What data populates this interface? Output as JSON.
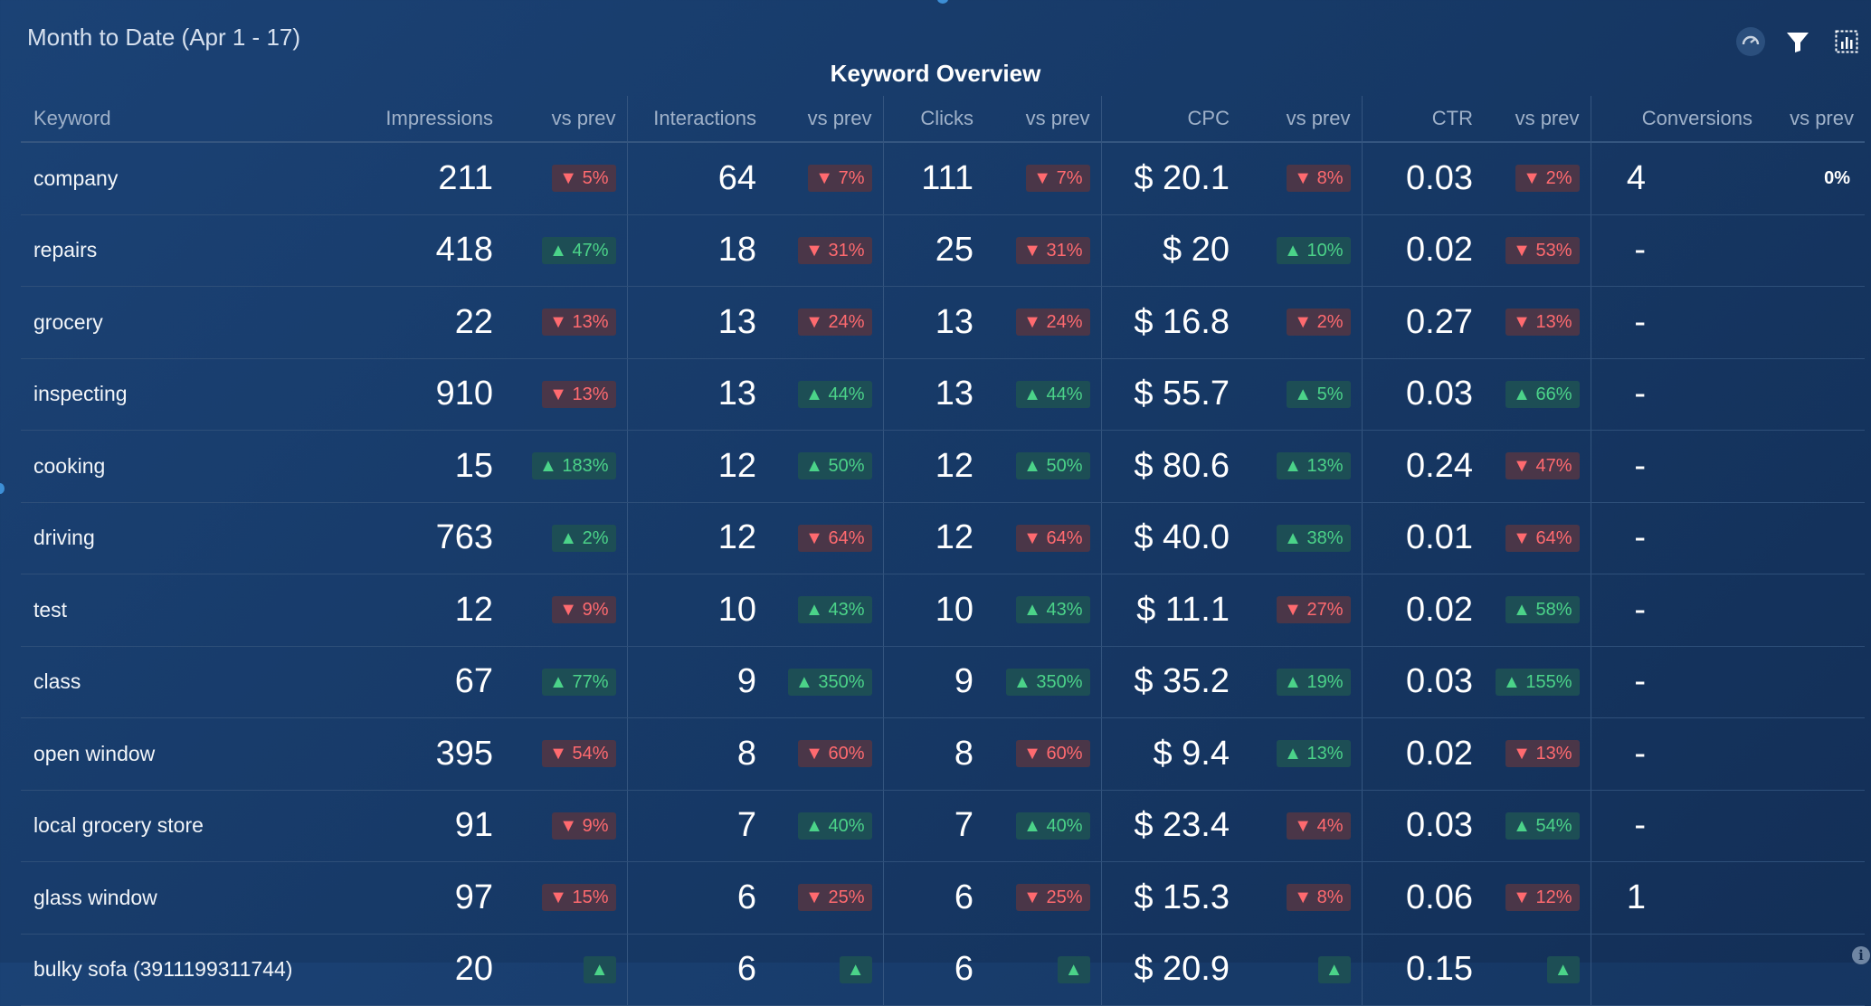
{
  "header": {
    "period": "Month to Date (Apr 1 - 17)",
    "title": "Keyword Overview",
    "icons": [
      "gauge-icon",
      "filter-icon",
      "chart-settings-icon"
    ]
  },
  "colors": {
    "up": "#4bd389",
    "down": "#ff6a6f",
    "background": "#173a68"
  },
  "columns": [
    "Keyword",
    "Impressions",
    "vs prev",
    "Interactions",
    "vs prev",
    "Clicks",
    "vs prev",
    "CPC",
    "vs prev",
    "CTR",
    "vs prev",
    "Conversions",
    "vs prev"
  ],
  "rows": [
    {
      "keyword": "company",
      "impressions": "211",
      "imp_delta": {
        "dir": "down",
        "text": "5%"
      },
      "interactions": "64",
      "int_delta": {
        "dir": "down",
        "text": "7%"
      },
      "clicks": "111",
      "clk_delta": {
        "dir": "down",
        "text": "7%"
      },
      "cpc": "$ 20.1",
      "cpc_delta": {
        "dir": "down",
        "text": "8%"
      },
      "ctr": "0.03",
      "ctr_delta": {
        "dir": "down",
        "text": "2%"
      },
      "conversions": "4",
      "conv_delta": {
        "dir": "none",
        "text": "0%"
      }
    },
    {
      "keyword": "repairs",
      "impressions": "418",
      "imp_delta": {
        "dir": "up",
        "text": "47%"
      },
      "interactions": "18",
      "int_delta": {
        "dir": "down",
        "text": "31%"
      },
      "clicks": "25",
      "clk_delta": {
        "dir": "down",
        "text": "31%"
      },
      "cpc": "$ 20",
      "cpc_delta": {
        "dir": "up",
        "text": "10%"
      },
      "ctr": "0.02",
      "ctr_delta": {
        "dir": "down",
        "text": "53%"
      },
      "conversions": "-",
      "conv_delta": null
    },
    {
      "keyword": "grocery",
      "impressions": "22",
      "imp_delta": {
        "dir": "down",
        "text": "13%"
      },
      "interactions": "13",
      "int_delta": {
        "dir": "down",
        "text": "24%"
      },
      "clicks": "13",
      "clk_delta": {
        "dir": "down",
        "text": "24%"
      },
      "cpc": "$ 16.8",
      "cpc_delta": {
        "dir": "down",
        "text": "2%"
      },
      "ctr": "0.27",
      "ctr_delta": {
        "dir": "down",
        "text": "13%"
      },
      "conversions": "-",
      "conv_delta": null
    },
    {
      "keyword": "inspecting",
      "impressions": "910",
      "imp_delta": {
        "dir": "down",
        "text": "13%"
      },
      "interactions": "13",
      "int_delta": {
        "dir": "up",
        "text": "44%"
      },
      "clicks": "13",
      "clk_delta": {
        "dir": "up",
        "text": "44%"
      },
      "cpc": "$ 55.7",
      "cpc_delta": {
        "dir": "up",
        "text": "5%"
      },
      "ctr": "0.03",
      "ctr_delta": {
        "dir": "up",
        "text": "66%"
      },
      "conversions": "-",
      "conv_delta": null
    },
    {
      "keyword": "cooking",
      "impressions": "15",
      "imp_delta": {
        "dir": "up",
        "text": "183%"
      },
      "interactions": "12",
      "int_delta": {
        "dir": "up",
        "text": "50%"
      },
      "clicks": "12",
      "clk_delta": {
        "dir": "up",
        "text": "50%"
      },
      "cpc": "$ 80.6",
      "cpc_delta": {
        "dir": "up",
        "text": "13%"
      },
      "ctr": "0.24",
      "ctr_delta": {
        "dir": "down",
        "text": "47%"
      },
      "conversions": "-",
      "conv_delta": null
    },
    {
      "keyword": "driving",
      "impressions": "763",
      "imp_delta": {
        "dir": "up",
        "text": "2%"
      },
      "interactions": "12",
      "int_delta": {
        "dir": "down",
        "text": "64%"
      },
      "clicks": "12",
      "clk_delta": {
        "dir": "down",
        "text": "64%"
      },
      "cpc": "$ 40.0",
      "cpc_delta": {
        "dir": "up",
        "text": "38%"
      },
      "ctr": "0.01",
      "ctr_delta": {
        "dir": "down",
        "text": "64%"
      },
      "conversions": "-",
      "conv_delta": null
    },
    {
      "keyword": "test",
      "impressions": "12",
      "imp_delta": {
        "dir": "down",
        "text": "9%"
      },
      "interactions": "10",
      "int_delta": {
        "dir": "up",
        "text": "43%"
      },
      "clicks": "10",
      "clk_delta": {
        "dir": "up",
        "text": "43%"
      },
      "cpc": "$ 11.1",
      "cpc_delta": {
        "dir": "down",
        "text": "27%"
      },
      "ctr": "0.02",
      "ctr_delta": {
        "dir": "up",
        "text": "58%"
      },
      "conversions": "-",
      "conv_delta": null
    },
    {
      "keyword": "class",
      "impressions": "67",
      "imp_delta": {
        "dir": "up",
        "text": "77%"
      },
      "interactions": "9",
      "int_delta": {
        "dir": "up",
        "text": "350%"
      },
      "clicks": "9",
      "clk_delta": {
        "dir": "up",
        "text": "350%"
      },
      "cpc": "$ 35.2",
      "cpc_delta": {
        "dir": "up",
        "text": "19%"
      },
      "ctr": "0.03",
      "ctr_delta": {
        "dir": "up",
        "text": "155%"
      },
      "conversions": "-",
      "conv_delta": null
    },
    {
      "keyword": "open window",
      "impressions": "395",
      "imp_delta": {
        "dir": "down",
        "text": "54%"
      },
      "interactions": "8",
      "int_delta": {
        "dir": "down",
        "text": "60%"
      },
      "clicks": "8",
      "clk_delta": {
        "dir": "down",
        "text": "60%"
      },
      "cpc": "$ 9.4",
      "cpc_delta": {
        "dir": "up",
        "text": "13%"
      },
      "ctr": "0.02",
      "ctr_delta": {
        "dir": "down",
        "text": "13%"
      },
      "conversions": "-",
      "conv_delta": null
    },
    {
      "keyword": "local grocery store",
      "impressions": "91",
      "imp_delta": {
        "dir": "down",
        "text": "9%"
      },
      "interactions": "7",
      "int_delta": {
        "dir": "up",
        "text": "40%"
      },
      "clicks": "7",
      "clk_delta": {
        "dir": "up",
        "text": "40%"
      },
      "cpc": "$ 23.4",
      "cpc_delta": {
        "dir": "down",
        "text": "4%"
      },
      "ctr": "0.03",
      "ctr_delta": {
        "dir": "up",
        "text": "54%"
      },
      "conversions": "-",
      "conv_delta": null
    },
    {
      "keyword": "glass window",
      "impressions": "97",
      "imp_delta": {
        "dir": "down",
        "text": "15%"
      },
      "interactions": "6",
      "int_delta": {
        "dir": "down",
        "text": "25%"
      },
      "clicks": "6",
      "clk_delta": {
        "dir": "down",
        "text": "25%"
      },
      "cpc": "$ 15.3",
      "cpc_delta": {
        "dir": "down",
        "text": "8%"
      },
      "ctr": "0.06",
      "ctr_delta": {
        "dir": "down",
        "text": "12%"
      },
      "conversions": "1",
      "conv_delta": null
    },
    {
      "keyword": "bulky sofa (3911199311744)",
      "impressions": "20",
      "imp_delta": {
        "dir": "up",
        "text": ""
      },
      "interactions": "6",
      "int_delta": {
        "dir": "up",
        "text": ""
      },
      "clicks": "6",
      "clk_delta": {
        "dir": "up",
        "text": ""
      },
      "cpc": "$ 20.9",
      "cpc_delta": {
        "dir": "up",
        "text": ""
      },
      "ctr": "0.15",
      "ctr_delta": {
        "dir": "up",
        "text": ""
      },
      "conversions": "",
      "conv_delta": null
    }
  ]
}
